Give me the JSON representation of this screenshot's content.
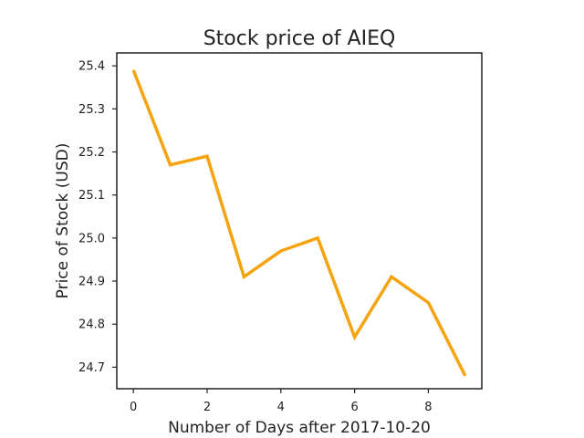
{
  "chart_data": {
    "type": "line",
    "title": "Stock price of AIEQ",
    "xlabel": "Number of Days after 2017-10-20",
    "ylabel": "Price of Stock (USD)",
    "xlim": [
      -0.45,
      9.45
    ],
    "ylim": [
      24.65,
      25.43
    ],
    "xticks": [
      0,
      2,
      4,
      6,
      8
    ],
    "yticks": [
      24.7,
      24.8,
      24.9,
      25.0,
      25.1,
      25.2,
      25.3,
      25.4
    ],
    "ytick_labels": [
      "24.7",
      "24.8",
      "24.9",
      "25.0",
      "25.1",
      "25.2",
      "25.3",
      "25.4"
    ],
    "grid": false,
    "series": [
      {
        "color": "#f5a30f",
        "x": [
          0,
          1,
          2,
          3,
          4,
          5,
          6,
          7,
          8,
          9
        ],
        "y": [
          25.39,
          25.17,
          25.19,
          24.91,
          24.97,
          25.0,
          24.77,
          24.91,
          24.85,
          24.68
        ]
      }
    ]
  }
}
